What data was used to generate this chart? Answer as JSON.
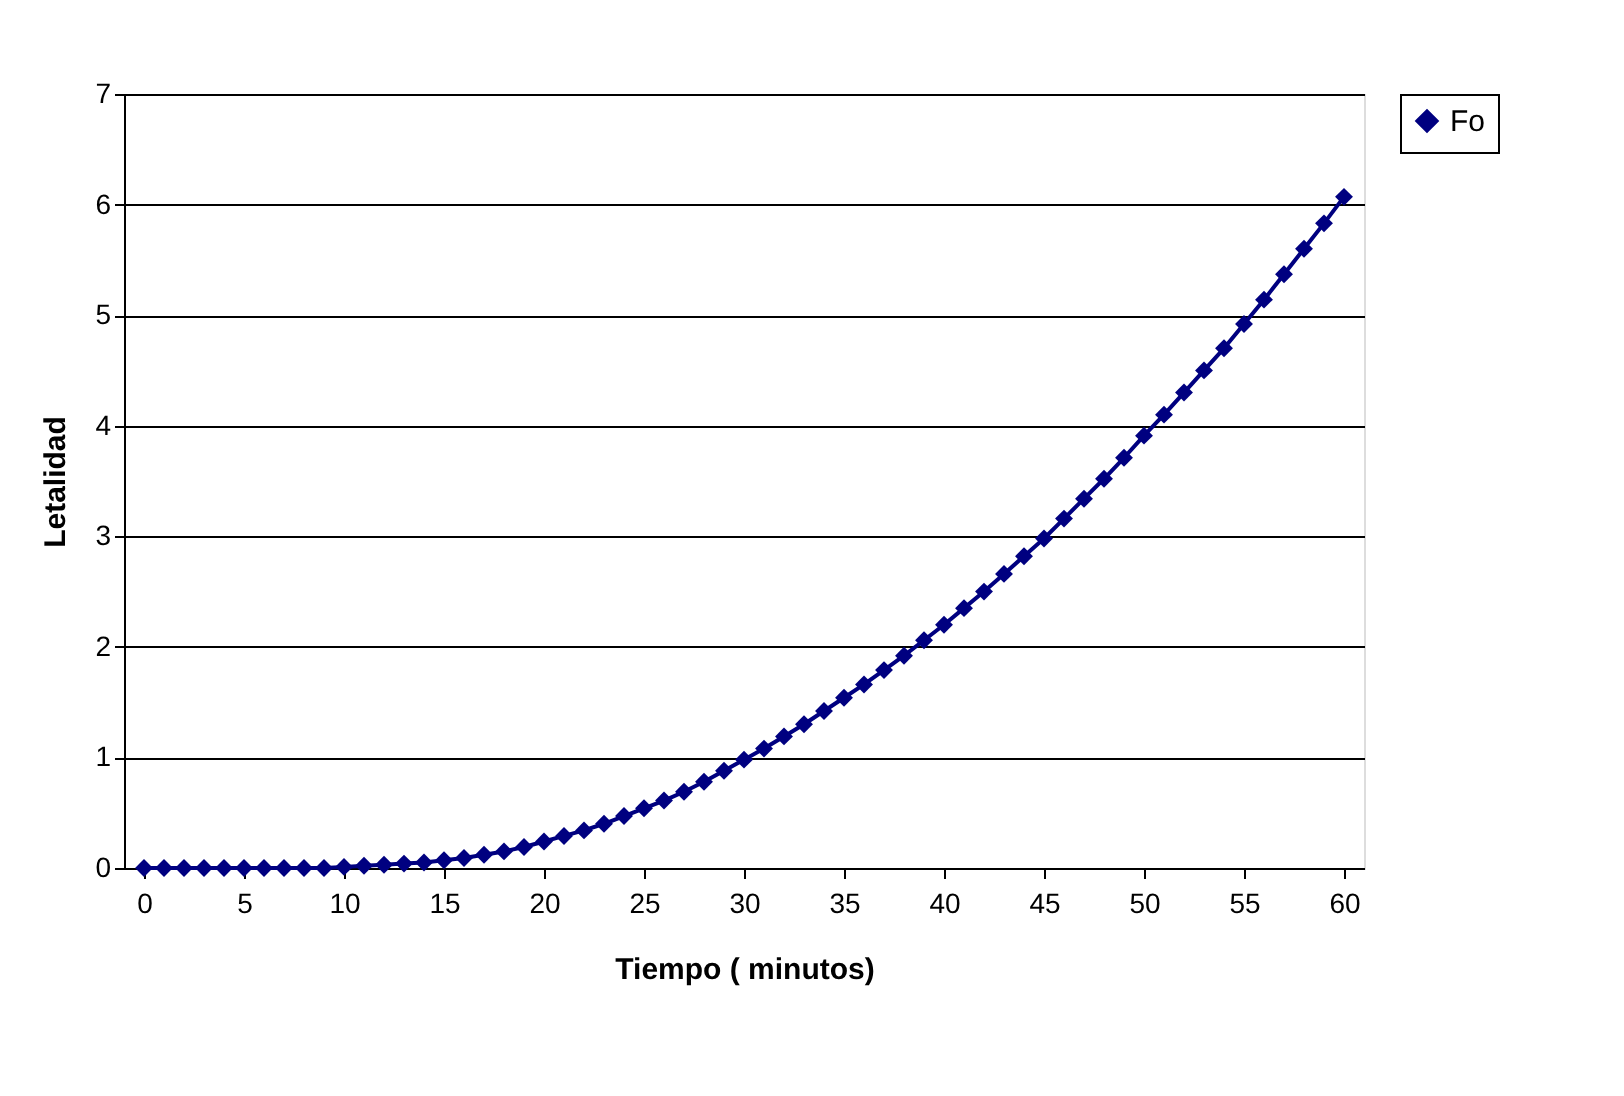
{
  "chart_data": {
    "type": "line",
    "xlabel": "Tiempo ( minutos)",
    "ylabel": "Letalidad",
    "x": [
      0,
      1,
      2,
      3,
      4,
      5,
      6,
      7,
      8,
      9,
      10,
      11,
      12,
      13,
      14,
      15,
      16,
      17,
      18,
      19,
      20,
      21,
      22,
      23,
      24,
      25,
      26,
      27,
      28,
      29,
      30,
      31,
      32,
      33,
      34,
      35,
      36,
      37,
      38,
      39,
      40,
      41,
      42,
      43,
      44,
      45,
      46,
      47,
      48,
      49,
      50,
      51,
      52,
      53,
      54,
      55,
      56,
      57,
      58,
      59,
      60
    ],
    "series": [
      {
        "name": "Fo",
        "color": "#000080",
        "values": [
          0,
          0,
          0,
          0,
          0,
          0,
          0,
          0,
          0,
          0,
          0.01,
          0.02,
          0.03,
          0.04,
          0.05,
          0.07,
          0.09,
          0.12,
          0.15,
          0.19,
          0.24,
          0.29,
          0.34,
          0.4,
          0.47,
          0.54,
          0.61,
          0.69,
          0.78,
          0.88,
          0.98,
          1.08,
          1.19,
          1.3,
          1.42,
          1.54,
          1.66,
          1.79,
          1.92,
          2.06,
          2.2,
          2.35,
          2.5,
          2.66,
          2.82,
          2.98,
          3.16,
          3.34,
          3.52,
          3.71,
          3.91,
          4.1,
          4.3,
          4.5,
          4.7,
          4.92,
          5.14,
          5.37,
          5.6,
          5.83,
          6.07
        ]
      }
    ],
    "xlim": [
      -1,
      61
    ],
    "xticks": [
      0,
      5,
      10,
      15,
      20,
      25,
      30,
      35,
      40,
      45,
      50,
      55,
      60
    ],
    "ylim": [
      0,
      7
    ],
    "yticks": [
      0,
      1,
      2,
      3,
      4,
      5,
      6,
      7
    ],
    "grid": "y",
    "legend": "right",
    "marker": "diamond",
    "line_style": "solid"
  }
}
